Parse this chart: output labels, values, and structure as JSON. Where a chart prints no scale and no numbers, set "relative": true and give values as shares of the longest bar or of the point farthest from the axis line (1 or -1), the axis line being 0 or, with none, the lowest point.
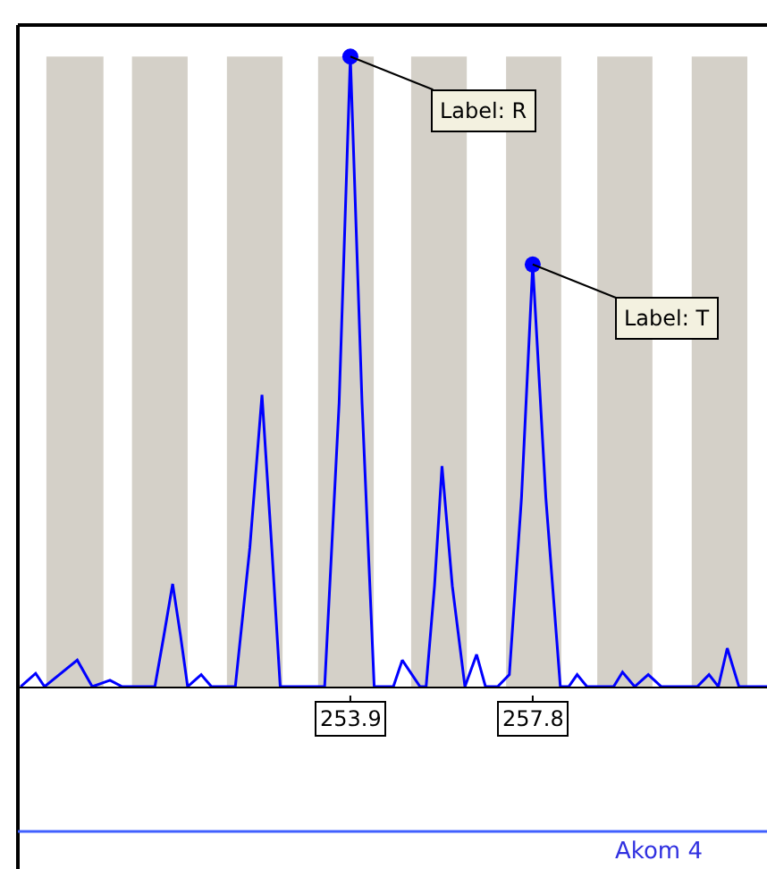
{
  "chart_data": {
    "type": "line",
    "relative": true,
    "xlim": [
      246.79,
      262.81
    ],
    "xticks": [
      253.9,
      257.8
    ],
    "tick_labels": "x",
    "series": [
      {
        "color": "#0000ff",
        "marker": "none",
        "x": [
          246.85,
          247.17,
          247.36,
          248.06,
          248.38,
          248.76,
          249.02,
          249.72,
          249.91,
          250.1,
          250.27,
          250.42,
          250.71,
          250.93,
          251.44,
          251.75,
          252.01,
          252.22,
          252.4,
          253.35,
          253.66,
          253.9,
          254.15,
          254.41,
          254.82,
          255.01,
          255.39,
          255.52,
          255.7,
          255.86,
          256.08,
          256.35,
          256.6,
          256.79,
          257.05,
          257.3,
          257.56,
          257.8,
          258.08,
          258.39,
          258.57,
          258.75,
          258.96,
          259.53,
          259.72,
          259.98,
          260.27,
          260.55,
          261.32,
          261.57,
          261.77,
          261.96,
          262.21,
          262.81
        ],
        "values": [
          0,
          0.021,
          0,
          0.042,
          0,
          0.01,
          0,
          0,
          0.08,
          0.163,
          0.08,
          0,
          0.019,
          0,
          0,
          0.22,
          0.463,
          0.22,
          0,
          0,
          0.45,
          1,
          0.45,
          0,
          0,
          0.042,
          0,
          0,
          0.16,
          0.35,
          0.16,
          0,
          0.051,
          0,
          0,
          0.019,
          0.3,
          0.67,
          0.3,
          0,
          0,
          0.019,
          0,
          0,
          0.023,
          0,
          0.019,
          0,
          0,
          0.019,
          0,
          0.061,
          0,
          0
        ]
      },
      {
        "type": "scatter",
        "color": "#0000ff",
        "marker": "circle",
        "x": [
          253.9,
          257.8
        ],
        "values": [
          1,
          0.67
        ]
      }
    ],
    "bands": [
      {
        "axis": "x",
        "from": 247.4,
        "to": 248.62,
        "color": "#d4d0c8"
      },
      {
        "axis": "x",
        "from": 249.23,
        "to": 250.42,
        "color": "#d4d0c8"
      },
      {
        "axis": "x",
        "from": 251.26,
        "to": 252.45,
        "color": "#d4d0c8"
      },
      {
        "axis": "x",
        "from": 253.21,
        "to": 254.4,
        "color": "#d4d0c8"
      },
      {
        "axis": "x",
        "from": 255.2,
        "to": 256.39,
        "color": "#d4d0c8"
      },
      {
        "axis": "x",
        "from": 257.23,
        "to": 258.41,
        "color": "#d4d0c8"
      },
      {
        "axis": "x",
        "from": 259.18,
        "to": 260.36,
        "color": "#d4d0c8"
      },
      {
        "axis": "x",
        "from": 261.2,
        "to": 262.39,
        "color": "#d4d0c8"
      }
    ],
    "annotations": [
      {
        "text": "Label: R",
        "x": 253.9,
        "y": 1
      },
      {
        "text": "Label: T",
        "x": 257.8,
        "y": 0.67
      },
      "Akom 4"
    ]
  }
}
